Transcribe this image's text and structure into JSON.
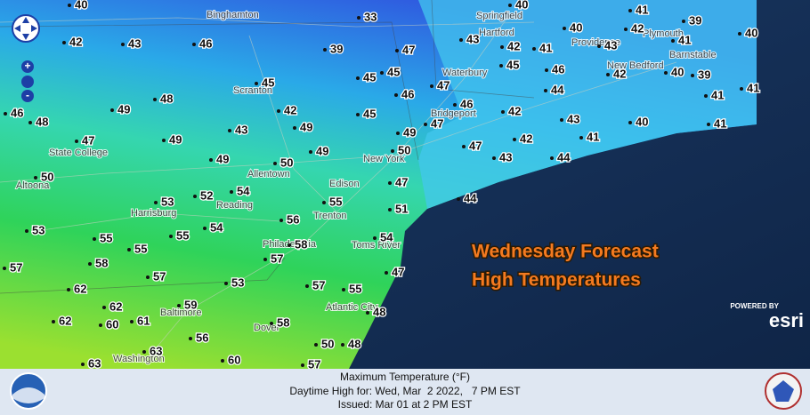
{
  "overlay": {
    "line1": "Wednesday Forecast",
    "line2": "High Temperatures"
  },
  "attribution": {
    "powered_by": "POWERED BY",
    "brand": "esri"
  },
  "footer": {
    "title": "Maximum Temperature (°F)",
    "valid": "Daytime High for: Wed, Mar  2 2022,   7 PM EST",
    "issued": "Issued: Mar 01 at 2 PM EST"
  },
  "cities": [
    "Binghamton",
    "Springfield",
    "Hartford",
    "Plymouth",
    "Providence",
    "Barnstable",
    "New Bedford",
    "Waterbury",
    "Scranton",
    "Bridgeport",
    "State College",
    "Allentown",
    "New York",
    "Edison",
    "Altoona",
    "Harrisburg",
    "Reading",
    "Trenton",
    "Philadelphia",
    "Toms River",
    "Baltimore",
    "Atlantic City",
    "Dover",
    "Washington"
  ],
  "temperatures": [
    40,
    33,
    40,
    41,
    39,
    40,
    42,
    41,
    43,
    40,
    41,
    42,
    43,
    45,
    46,
    44,
    42,
    40,
    39,
    41,
    41,
    41,
    40,
    41,
    43,
    42,
    42,
    46,
    47,
    47,
    47,
    43,
    44,
    44,
    47,
    39,
    45,
    45,
    46,
    45,
    49,
    50,
    47,
    51,
    54,
    47,
    55,
    48,
    48,
    50,
    57,
    57,
    58,
    57,
    58,
    55,
    56,
    49,
    50,
    49,
    42,
    45,
    43,
    49,
    54,
    52,
    53,
    54,
    55,
    55,
    55,
    58,
    57,
    53,
    62,
    62,
    59,
    60,
    61,
    62,
    63,
    63,
    60,
    56,
    53,
    57,
    50,
    47,
    49,
    49,
    48,
    48,
    46,
    42,
    43,
    46
  ]
}
